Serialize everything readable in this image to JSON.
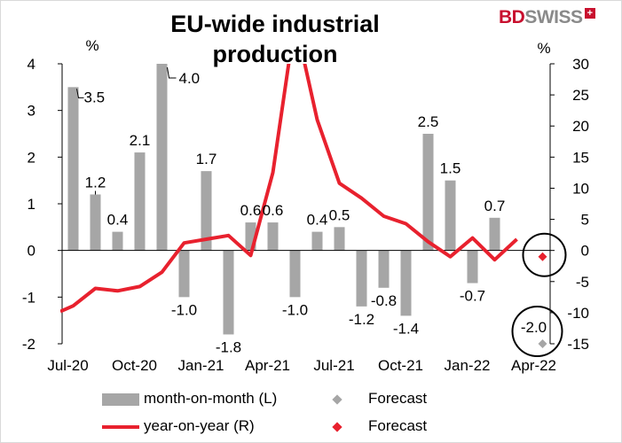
{
  "title": "EU-wide industrial production",
  "brand": {
    "bd": "BD",
    "swiss": "SWISS",
    "badge": "+"
  },
  "chart_data": {
    "type": "bar",
    "left_axis": {
      "unit_label": "%",
      "range": [
        -2,
        4
      ],
      "ticks": [
        -2,
        -1,
        0,
        1,
        2,
        3,
        4
      ]
    },
    "right_axis": {
      "unit_label": "%",
      "range": [
        -15,
        30
      ],
      "ticks": [
        -15,
        -10,
        -5,
        0,
        5,
        10,
        15,
        20,
        25,
        30
      ]
    },
    "x_tick_labels": [
      "Jul-20",
      "Oct-20",
      "Jan-21",
      "Apr-21",
      "Jul-21",
      "Oct-21",
      "Jan-22",
      "Apr-22"
    ],
    "months": [
      "Jul-20",
      "Aug-20",
      "Sep-20",
      "Oct-20",
      "Nov-20",
      "Dec-20",
      "Jan-21",
      "Feb-21",
      "Mar-21",
      "Apr-21",
      "May-21",
      "Jun-21",
      "Jul-21",
      "Aug-21",
      "Sep-21",
      "Oct-21",
      "Nov-21",
      "Dec-21",
      "Jan-22",
      "Feb-22",
      "Mar-22",
      "Apr-22"
    ],
    "series": [
      {
        "name": "month-on-month (L)",
        "type": "bar",
        "axis": "left",
        "values": [
          3.5,
          1.2,
          0.4,
          2.1,
          4.0,
          -1.0,
          1.7,
          -1.8,
          0.6,
          0.6,
          -1.0,
          0.4,
          0.5,
          -1.2,
          -0.8,
          -1.4,
          2.5,
          1.5,
          -0.7,
          0.7,
          null,
          null
        ],
        "data_labels": [
          "3.5",
          "1.2",
          "0.4",
          "2.1",
          "4.0",
          "-1.0",
          "1.7",
          "-1.8",
          "0.6",
          "0.6",
          "-1.0",
          "0.4",
          "0.5",
          "-1.2",
          "-0.8",
          "-1.4",
          "2.5",
          "1.5",
          "-0.7",
          "0.7",
          "",
          ""
        ]
      },
      {
        "name": "year-on-year (R)",
        "type": "line",
        "axis": "right",
        "values": [
          -8.9,
          -6.1,
          -6.5,
          -5.8,
          -3.5,
          1.2,
          1.8,
          2.4,
          -0.8,
          12.5,
          37.0,
          21.0,
          10.8,
          8.4,
          5.5,
          4.3,
          1.4,
          -1.0,
          2.0,
          -1.5,
          1.8,
          null
        ]
      },
      {
        "name": "Forecast",
        "type": "scatter",
        "axis": "left",
        "color": "#a6a6a6",
        "month": "Apr-22",
        "value": -2.0,
        "data_label": "-2.0"
      },
      {
        "name": "Forecast",
        "type": "scatter",
        "axis": "right",
        "color": "#e8212e",
        "month": "Apr-22",
        "value": -1.0
      }
    ],
    "colors": {
      "bar": "#a6a6a6",
      "line": "#e8212e",
      "mm_forecast": "#a6a6a6",
      "yy_forecast": "#e8212e"
    },
    "legend": [
      {
        "label": "month-on-month (L)"
      },
      {
        "label": "Forecast"
      },
      {
        "label": "year-on-year (R)"
      },
      {
        "label": "Forecast"
      }
    ],
    "legend_position": "bottom",
    "grid": false
  }
}
